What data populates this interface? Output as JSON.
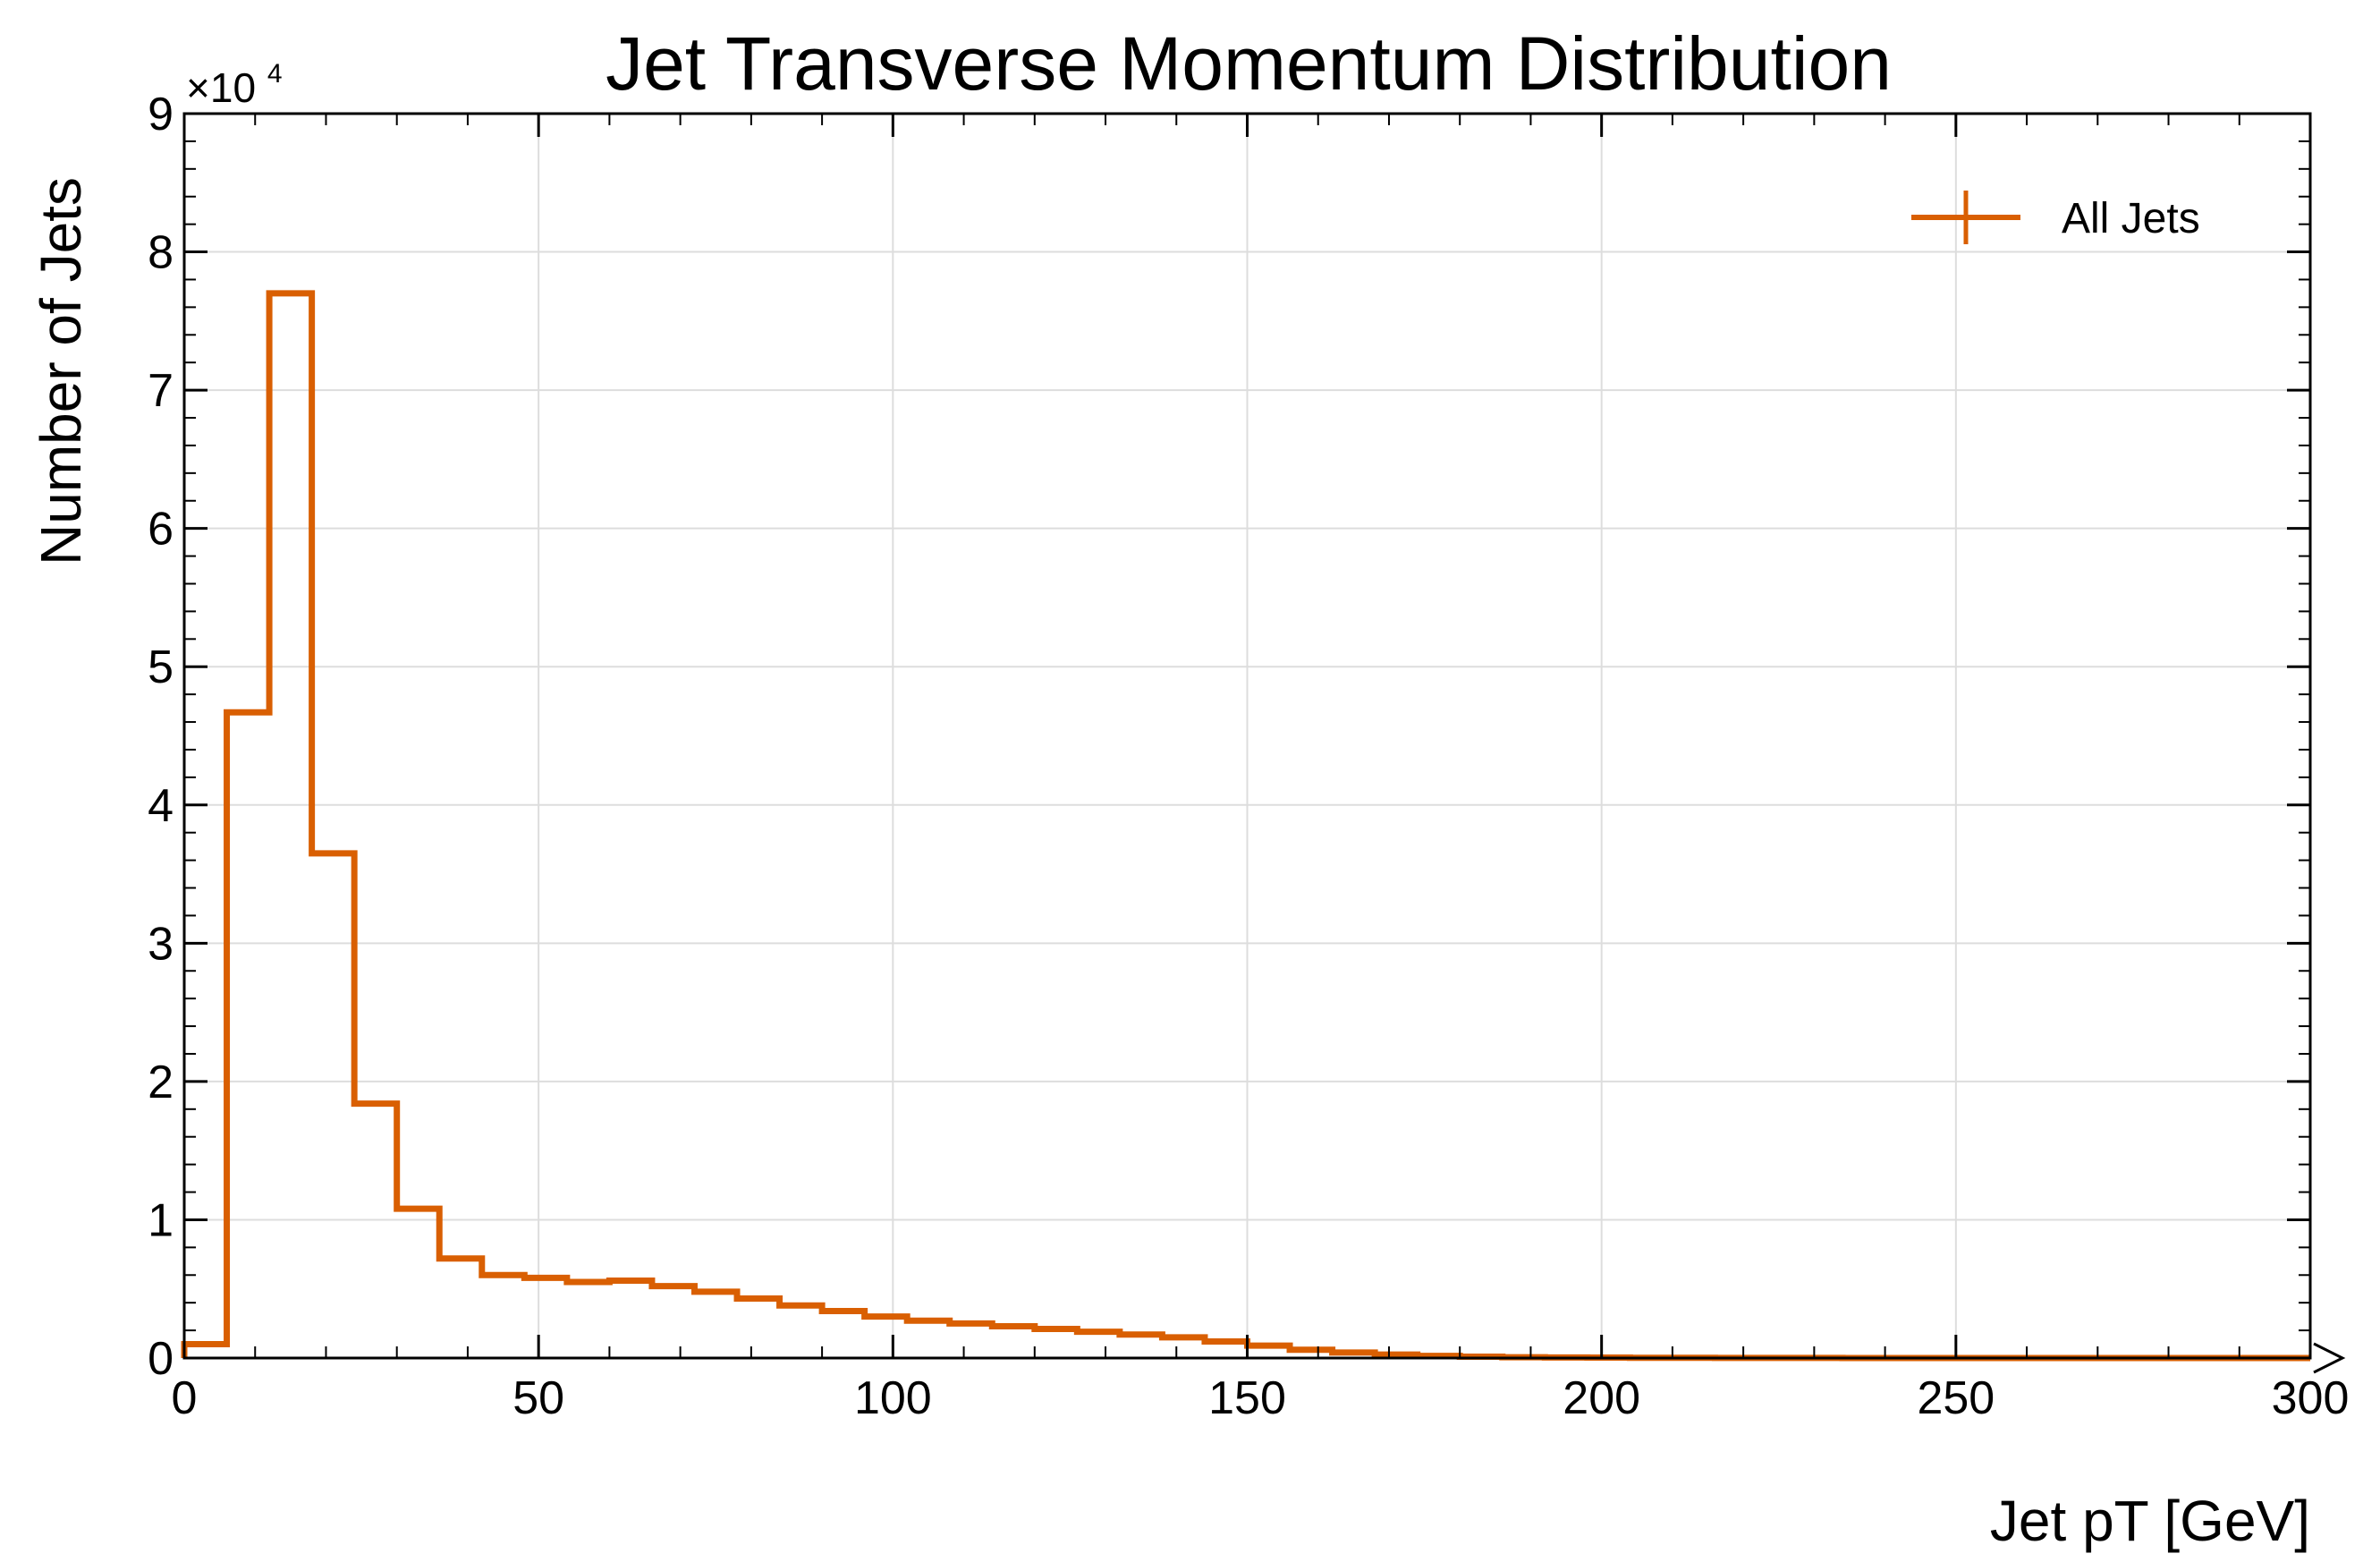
{
  "chart_data": {
    "type": "histogram",
    "title": "Jet Transverse Momentum Distribution",
    "xlabel": "Jet pT [GeV]",
    "ylabel": "Number of Jets",
    "xlim": [
      0,
      300
    ],
    "ylim": [
      0,
      90000
    ],
    "y_multiplier": {
      "base": "×10",
      "exponent": "4"
    },
    "x_ticks": [
      "0",
      "50",
      "100",
      "150",
      "200",
      "250",
      "300"
    ],
    "y_ticks": [
      "0",
      "1",
      "2",
      "3",
      "4",
      "5",
      "6",
      "7",
      "8",
      "9"
    ],
    "grid": true,
    "legend_position": "top-right",
    "bin_width": 6,
    "bin_edges": [
      0,
      6,
      12,
      18,
      24,
      30,
      36,
      42,
      48,
      54,
      60,
      66,
      72,
      78,
      84,
      90,
      96,
      102,
      108,
      114,
      120,
      126,
      132,
      138,
      144,
      150,
      156,
      162,
      168,
      174,
      180,
      186,
      192,
      198,
      204,
      210,
      216,
      222,
      228,
      234,
      240,
      246,
      252,
      258,
      264,
      270,
      276,
      282,
      288,
      294,
      300
    ],
    "series": [
      {
        "name": "All Jets",
        "color": "#d95f02",
        "values": [
          1000,
          46700,
          77000,
          36500,
          18400,
          10800,
          7200,
          6000,
          5800,
          5500,
          5600,
          5200,
          4800,
          4300,
          3800,
          3400,
          3000,
          2700,
          2500,
          2300,
          2100,
          1900,
          1700,
          1500,
          1200,
          900,
          600,
          400,
          250,
          150,
          100,
          60,
          40,
          30,
          20,
          15,
          10,
          8,
          5,
          4,
          3,
          2,
          1,
          1,
          1,
          0,
          0,
          0,
          0,
          0
        ]
      }
    ]
  }
}
